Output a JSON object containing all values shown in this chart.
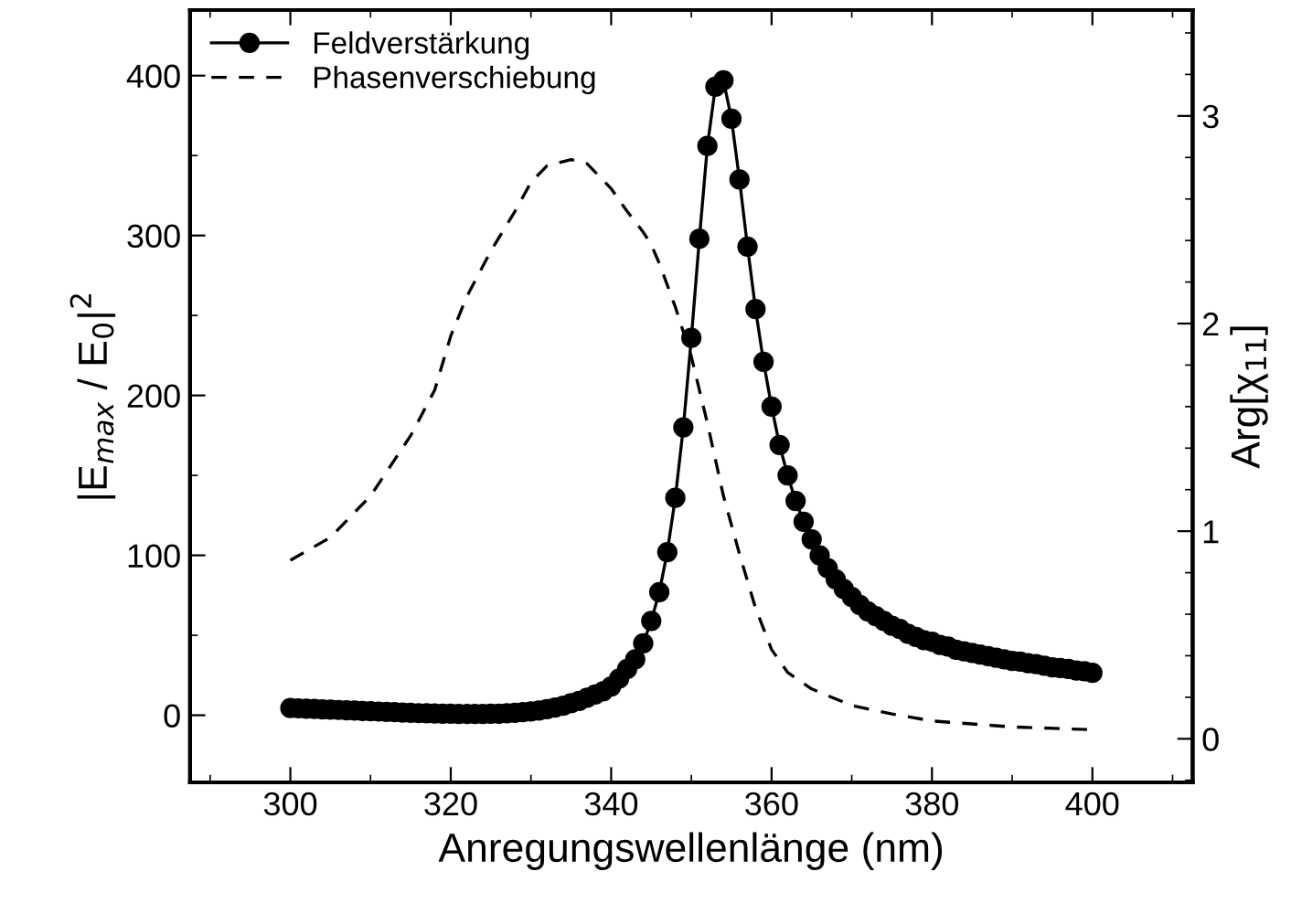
{
  "chart_data": {
    "type": "line",
    "xlabel": "Anregungswellenlänge (nm)",
    "ylabel": "|E$_{max}$ / E$_{0}$|$^{2}$",
    "y2label": "Arg[χ$_{11}$]",
    "xlim": [
      287.5,
      412.5
    ],
    "xticks": [
      300,
      320,
      340,
      360,
      380,
      400
    ],
    "ylim": [
      -42,
      441
    ],
    "yticks": [
      0,
      100,
      200,
      300,
      400
    ],
    "y2lim": [
      -0.21,
      3.51
    ],
    "y2ticks": [
      0,
      1,
      2,
      3
    ],
    "legend": "top left",
    "grid": false,
    "series": [
      {
        "name": "Feldverstärkung",
        "color": "#000000",
        "marker": "circle",
        "line_style": "solid",
        "x": [
          300,
          301,
          302,
          303,
          304,
          305,
          306,
          307,
          308,
          309,
          310,
          311,
          312,
          313,
          314,
          315,
          316,
          317,
          318,
          319,
          320,
          321,
          322,
          323,
          324,
          325,
          326,
          327,
          328,
          329,
          330,
          331,
          332,
          333,
          334,
          335,
          336,
          337,
          338,
          339,
          340,
          341,
          342,
          343,
          344,
          345,
          346,
          347,
          348,
          349,
          350,
          351,
          352,
          353,
          354,
          355,
          356,
          357,
          358,
          359,
          360,
          361,
          362,
          363,
          364,
          365,
          366,
          367,
          368,
          369,
          370,
          371,
          372,
          373,
          374,
          375,
          376,
          377,
          378,
          379,
          380,
          381,
          382,
          383,
          384,
          385,
          386,
          387,
          388,
          389,
          390,
          391,
          392,
          393,
          394,
          395,
          396,
          397,
          398,
          399,
          400
        ],
        "values": [
          4.5,
          4.3,
          4.1,
          3.9,
          3.7,
          3.5,
          3.3,
          3.1,
          2.9,
          2.7,
          2.5,
          2.3,
          2.1,
          1.9,
          1.7,
          1.5,
          1.3,
          1.2,
          1.1,
          1.0,
          0.9,
          0.8,
          0.8,
          0.8,
          0.8,
          0.9,
          1.0,
          1.2,
          1.5,
          1.9,
          2.4,
          3,
          3.8,
          4.8,
          6,
          7.5,
          9,
          11,
          13,
          15,
          18,
          23,
          29,
          35,
          45,
          59,
          77,
          102,
          136,
          180,
          236,
          298,
          356,
          393,
          397,
          373,
          335,
          293,
          254,
          221,
          193,
          169,
          150,
          134,
          121,
          110,
          100,
          92,
          85,
          79,
          74,
          69,
          65,
          62,
          59,
          56,
          54,
          51,
          49,
          47,
          46,
          44,
          43,
          41,
          40,
          39,
          38,
          37,
          36,
          35,
          34,
          33.5,
          32.5,
          32,
          31,
          30,
          29.5,
          29,
          28,
          27.5,
          26.5
        ]
      },
      {
        "name": "Phasenverschiebung",
        "color": "#000000",
        "marker": "none",
        "line_style": "dashed",
        "axis": "y2",
        "x": [
          300,
          305,
          310,
          315,
          318,
          320,
          322,
          325,
          328,
          330,
          332,
          335,
          337,
          340,
          342,
          344,
          345,
          346,
          348,
          350,
          352,
          354,
          356,
          358,
          360,
          362,
          365,
          370,
          375,
          380,
          390,
          400
        ],
        "values": [
          0.86,
          0.97,
          1.17,
          1.46,
          1.68,
          1.94,
          2.13,
          2.35,
          2.54,
          2.68,
          2.76,
          2.79,
          2.77,
          2.65,
          2.54,
          2.44,
          2.38,
          2.29,
          2.08,
          1.84,
          1.52,
          1.17,
          0.89,
          0.63,
          0.43,
          0.32,
          0.24,
          0.16,
          0.12,
          0.086,
          0.057,
          0.044
        ]
      }
    ]
  }
}
